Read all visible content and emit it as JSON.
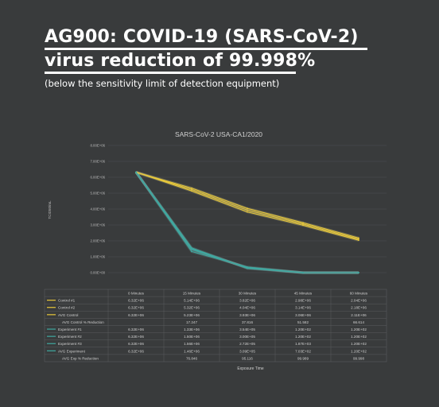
{
  "headline": {
    "line1": "AG900: COVID-19 (SARS-CoV-2)",
    "line2": "virus reduction of 99.998%",
    "subtitle": "(below the sensitivity limit of detection equipment)"
  },
  "colors": {
    "background": "#393b3c",
    "control": "#e8c83a",
    "control_glow": "#fff3a0",
    "experiment": "#3fa8a0",
    "experiment_glow": "#8fe0d8",
    "grid": "#4e5052",
    "text": "#c8c8c8"
  },
  "chart_data": {
    "type": "line",
    "title": "SARS-CoV-2 USA-CA1/2020",
    "ylabel": "TCID50/mL",
    "xlabel": "Exposure Time",
    "categories": [
      "0 Minutes",
      "15 Minutes",
      "30 Minutes",
      "45 Minutes",
      "60 Minutes"
    ],
    "ylim": [
      0,
      8000000
    ],
    "yticks": [
      "0.00E+00",
      "1.00E+06",
      "2.00E+06",
      "3.00E+06",
      "4.00E+06",
      "5.00E+06",
      "6.00E+06",
      "7.00E+06",
      "8.00E+06"
    ],
    "grid": true,
    "series": [
      {
        "name": "Control #1",
        "group": "control",
        "values": [
          6320000,
          5140000,
          3820000,
          2980000,
          2040000
        ],
        "labels": [
          "6.32E+06",
          "5.14E+06",
          "3.82E+06",
          "2.98E+06",
          "2.04E+06"
        ]
      },
      {
        "name": "Control #2",
        "group": "control",
        "values": [
          6320000,
          5320000,
          4040000,
          3140000,
          2180000
        ],
        "labels": [
          "6.32E+06",
          "5.32E+06",
          "4.04E+06",
          "3.14E+06",
          "2.18E+06"
        ]
      },
      {
        "name": "AVG Control",
        "group": "control",
        "values": [
          6320000,
          5230000,
          3930000,
          3060000,
          2110000
        ],
        "labels": [
          "6.32E+06",
          "5.23E+06",
          "3.93E+06",
          "3.06E+06",
          "2.11E+06"
        ]
      },
      {
        "name": "AVG Control % Reduction",
        "group": "pct",
        "labels": [
          "",
          "17.247",
          "37.816",
          "51.582",
          "66.614"
        ]
      },
      {
        "name": "Experiment #1",
        "group": "experiment",
        "values": [
          6320000,
          1330000,
          354000,
          120,
          120
        ],
        "labels": [
          "6.32E+06",
          "1.33E+06",
          "3.54E+05",
          "1.20E+02",
          "1.20E+02"
        ]
      },
      {
        "name": "Experiment #2",
        "group": "experiment",
        "values": [
          6320000,
          1500000,
          300000,
          120,
          120
        ],
        "labels": [
          "6.32E+06",
          "1.50E+06",
          "3.00E+05",
          "1.20E+02",
          "1.20E+02"
        ]
      },
      {
        "name": "Experiment #3",
        "group": "experiment",
        "values": [
          6320000,
          1560000,
          272000,
          1870,
          120
        ],
        "labels": [
          "6.32E+06",
          "1.56E+06",
          "2.72E+05",
          "1.87E+03",
          "1.20E+02"
        ]
      },
      {
        "name": "AVG Experiment",
        "group": "experiment",
        "values": [
          6320000,
          1460000,
          309000,
          703,
          120
        ],
        "labels": [
          "6.32E+06",
          "1.46E+06",
          "3.09E+05",
          "7.03E+02",
          "1.20E+02"
        ]
      },
      {
        "name": "AVG Exp % Reduction",
        "group": "pct",
        "labels": [
          "",
          "76.846",
          "95.116",
          "99.989",
          "99.998"
        ]
      }
    ]
  }
}
